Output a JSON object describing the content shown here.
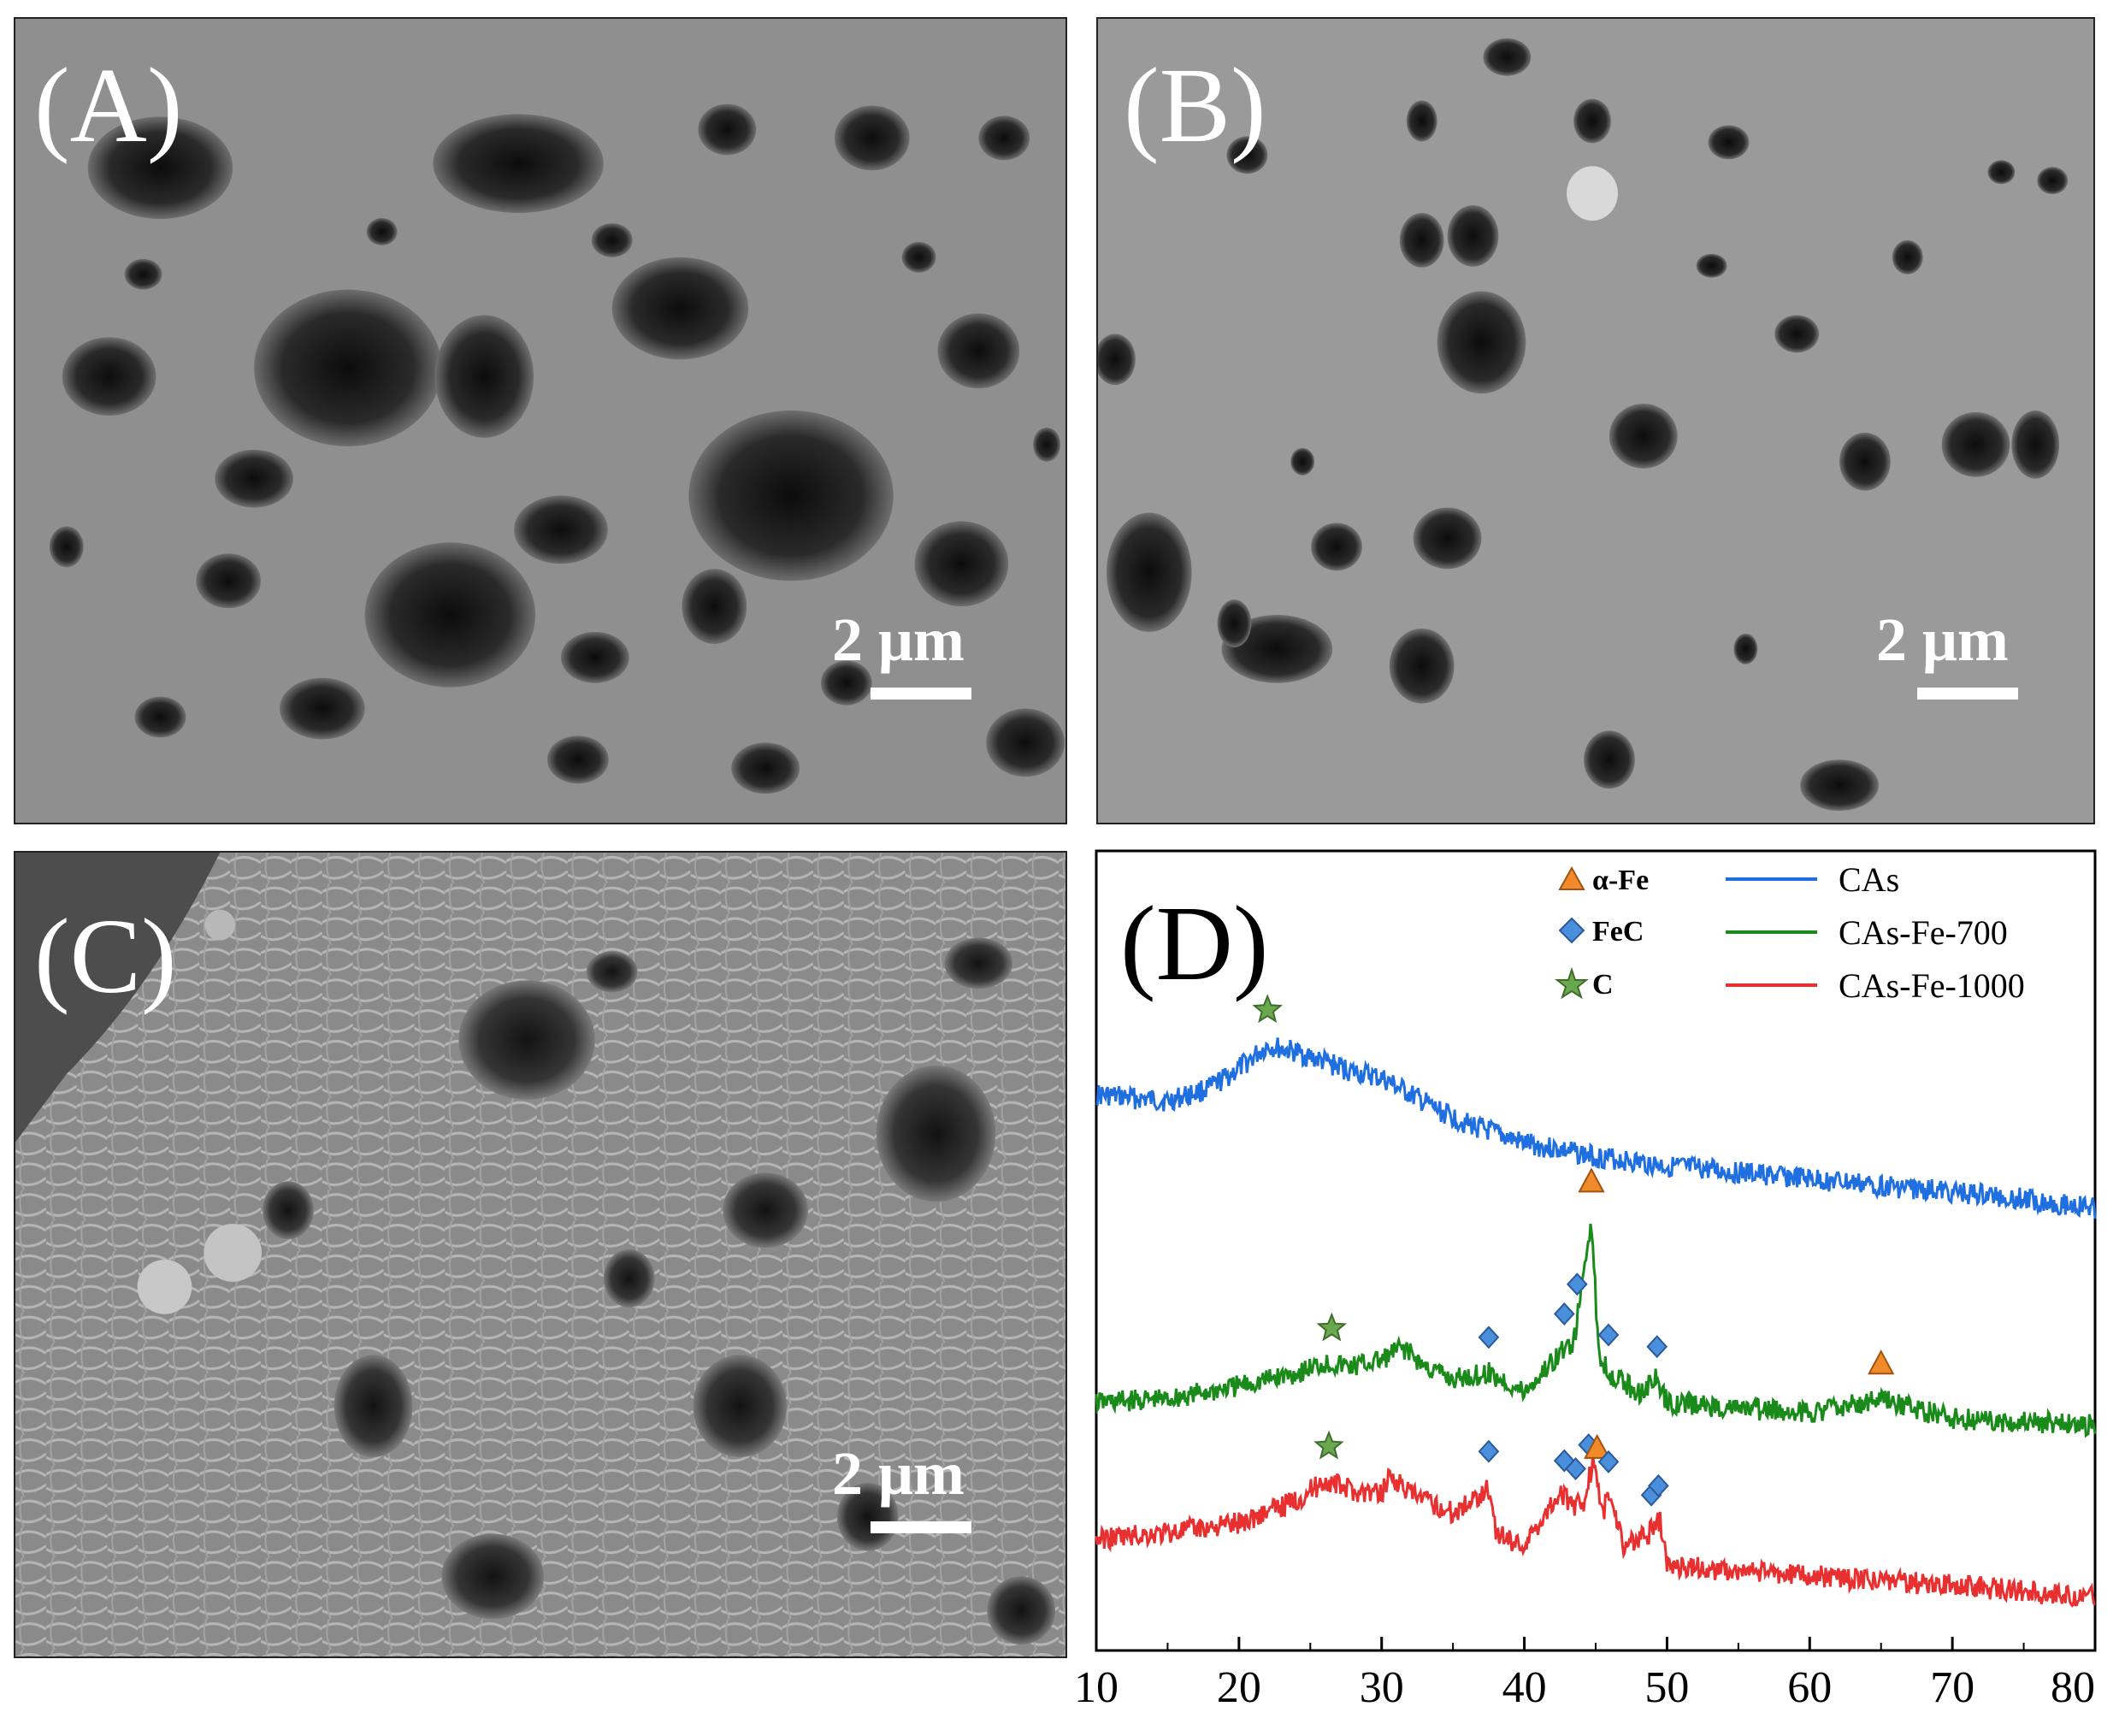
{
  "panels": {
    "a": {
      "label": "(A)",
      "scale": "2 μm"
    },
    "b": {
      "label": "(B)",
      "scale": "2 μm"
    },
    "c": {
      "label": "(C)",
      "scale": "2 μm"
    }
  },
  "chart_data": {
    "type": "line",
    "panel_label": "(D)",
    "title": "",
    "xlabel": "",
    "ylabel": "",
    "xlim": [
      10,
      80
    ],
    "x_ticks": [
      "10",
      "20",
      "30",
      "40",
      "50",
      "60",
      "70",
      "80"
    ],
    "grid": false,
    "legend_position": "top-right",
    "series": [
      {
        "name": "CAs",
        "color": "#1f6fe0",
        "x": [
          10,
          15,
          18,
          20,
          22,
          24,
          26,
          28,
          30,
          32,
          34,
          36,
          38,
          40,
          45,
          50,
          55,
          60,
          65,
          70,
          75,
          80
        ],
        "y": [
          0.8,
          0.78,
          0.82,
          0.88,
          0.95,
          0.93,
          0.9,
          0.87,
          0.85,
          0.8,
          0.75,
          0.71,
          0.68,
          0.65,
          0.61,
          0.58,
          0.56,
          0.54,
          0.52,
          0.5,
          0.48,
          0.45
        ]
      },
      {
        "name": "CAs-Fe-700",
        "color": "#1a8a1a",
        "x": [
          10,
          15,
          20,
          24,
          26,
          28,
          30,
          31.5,
          33,
          35,
          37.5,
          40,
          42.5,
          43.5,
          44.7,
          45.2,
          46,
          48,
          49.2,
          50,
          55,
          60,
          65,
          70,
          75,
          80
        ],
        "y": [
          0.15,
          0.16,
          0.2,
          0.24,
          0.27,
          0.26,
          0.28,
          0.32,
          0.26,
          0.22,
          0.24,
          0.18,
          0.3,
          0.34,
          0.72,
          0.3,
          0.24,
          0.18,
          0.22,
          0.15,
          0.13,
          0.12,
          0.16,
          0.1,
          0.09,
          0.08
        ]
      },
      {
        "name": "CAs-Fe-1000",
        "color": "#e83030",
        "x": [
          10,
          15,
          20,
          24,
          26,
          28,
          30,
          30.5,
          32,
          35,
          37.5,
          38,
          40,
          42.5,
          43.3,
          44.2,
          44.8,
          45.5,
          46,
          47,
          48.8,
          49.5,
          50,
          55,
          60,
          65,
          70,
          75,
          80
        ],
        "y": [
          -0.2,
          -0.18,
          -0.15,
          -0.08,
          -0.02,
          -0.05,
          -0.06,
          0.0,
          -0.06,
          -0.12,
          -0.04,
          -0.18,
          -0.22,
          -0.05,
          -0.1,
          -0.08,
          0.04,
          -0.12,
          -0.06,
          -0.22,
          -0.18,
          -0.14,
          -0.28,
          -0.3,
          -0.31,
          -0.33,
          -0.34,
          -0.36,
          -0.38
        ]
      }
    ],
    "legend": {
      "markers": [
        {
          "label": "α-Fe",
          "shape": "triangle",
          "color": "#f08a2a"
        },
        {
          "label": "FeC",
          "shape": "diamond",
          "color": "#4a8fdb"
        },
        {
          "label": "C",
          "shape": "star",
          "color": "#6aa84f"
        }
      ]
    },
    "peak_markers": [
      {
        "series": "CAs",
        "shape": "star",
        "x": 22
      },
      {
        "series": "CAs-Fe-700",
        "shape": "star",
        "x": 26.5
      },
      {
        "series": "CAs-Fe-700",
        "shape": "diamond",
        "x": 37.5
      },
      {
        "series": "CAs-Fe-700",
        "shape": "diamond",
        "x": 42.8
      },
      {
        "series": "CAs-Fe-700",
        "shape": "diamond",
        "x": 43.7
      },
      {
        "series": "CAs-Fe-700",
        "shape": "triangle",
        "x": 44.7
      },
      {
        "series": "CAs-Fe-700",
        "shape": "diamond",
        "x": 45.9
      },
      {
        "series": "CAs-Fe-700",
        "shape": "diamond",
        "x": 49.3
      },
      {
        "series": "CAs-Fe-700",
        "shape": "triangle",
        "x": 65
      },
      {
        "series": "CAs-Fe-1000",
        "shape": "star",
        "x": 26.3
      },
      {
        "series": "CAs-Fe-1000",
        "shape": "diamond",
        "x": 37.5
      },
      {
        "series": "CAs-Fe-1000",
        "shape": "diamond",
        "x": 42.8
      },
      {
        "series": "CAs-Fe-1000",
        "shape": "diamond",
        "x": 43.6
      },
      {
        "series": "CAs-Fe-1000",
        "shape": "diamond",
        "x": 44.5
      },
      {
        "series": "CAs-Fe-1000",
        "shape": "triangle",
        "x": 45.1
      },
      {
        "series": "CAs-Fe-1000",
        "shape": "diamond",
        "x": 45.9
      },
      {
        "series": "CAs-Fe-1000",
        "shape": "diamond",
        "x": 48.9
      },
      {
        "series": "CAs-Fe-1000",
        "shape": "diamond",
        "x": 49.4
      }
    ]
  }
}
